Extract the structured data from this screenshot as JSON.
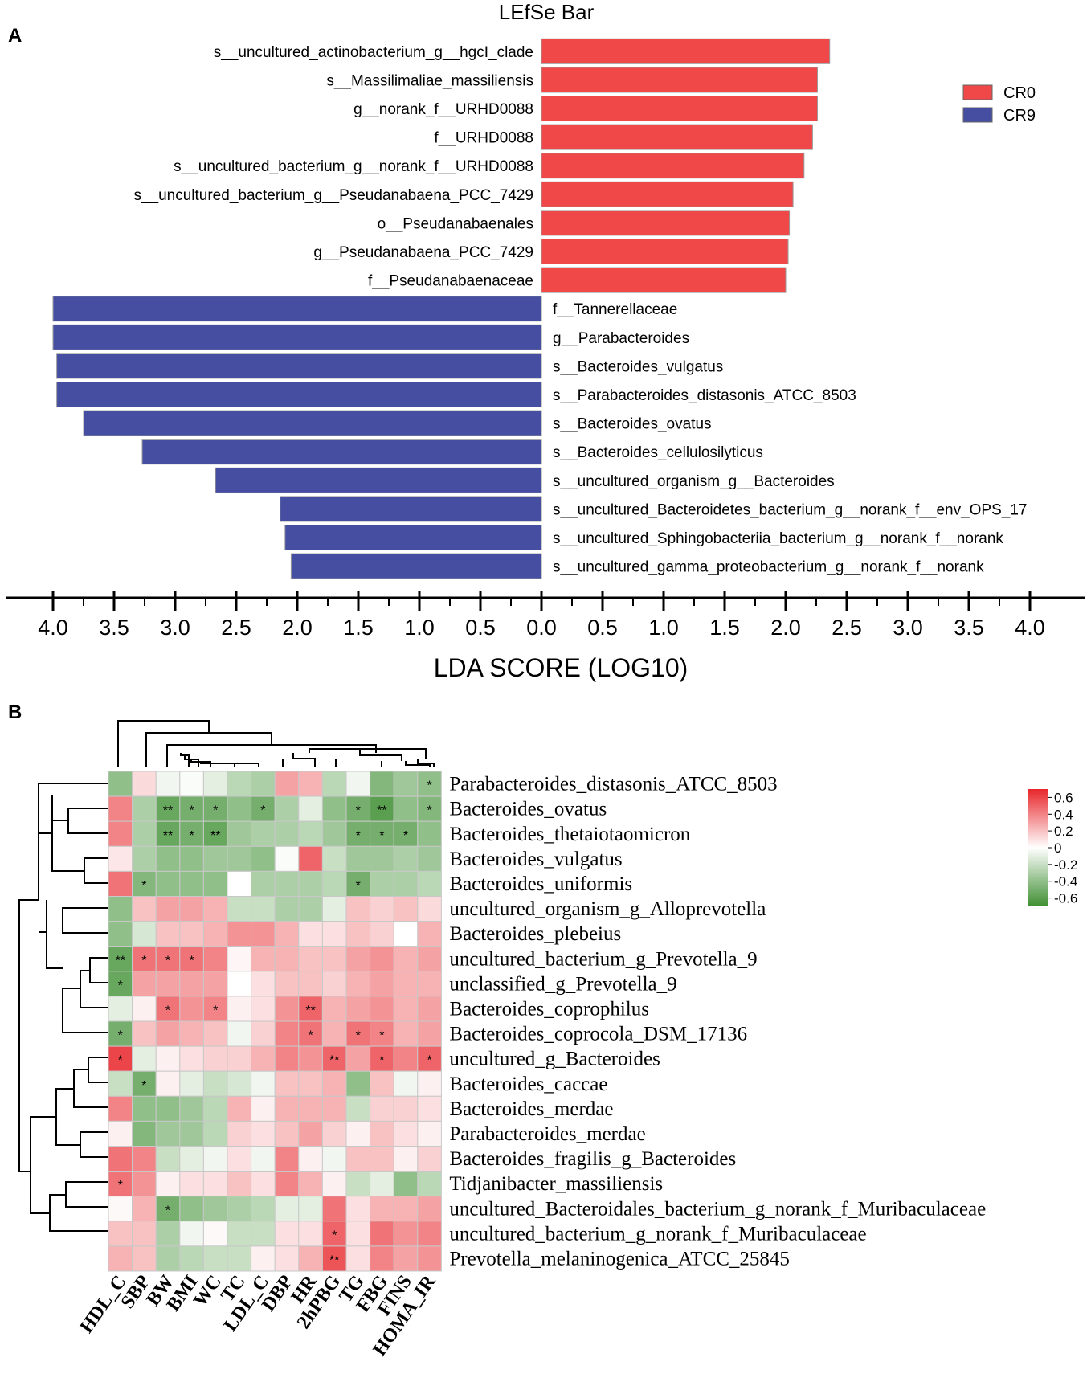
{
  "chart_data": [
    {
      "type": "bar",
      "panel_label": "A",
      "title": "LEfSe Bar",
      "xlabel": "LDA SCORE (LOG10)",
      "xlim": [
        -4.0,
        4.0
      ],
      "xticks": [
        -4.0,
        -3.5,
        -3.0,
        -2.5,
        -2.0,
        -1.5,
        -1.0,
        -0.5,
        0.0,
        0.5,
        1.0,
        1.5,
        2.0,
        2.5,
        3.0,
        3.5,
        4.0
      ],
      "xtick_labels": [
        "4.0",
        "3.5",
        "3.0",
        "2.5",
        "2.0",
        "1.5",
        "1.0",
        "0.5",
        "0.0",
        "0.5",
        "1.0",
        "1.5",
        "2.0",
        "2.5",
        "3.0",
        "3.5",
        "4.0"
      ],
      "legend": [
        {
          "name": "CR0",
          "color": "#f04848"
        },
        {
          "name": "CR9",
          "color": "#464ea2"
        }
      ],
      "legend_position": "top-right",
      "bars": [
        {
          "label": "s__uncultured_actinobacterium_g__hgcI_clade",
          "value": 2.36,
          "group": "CR0"
        },
        {
          "label": "s__Massilimaliae_massiliensis",
          "value": 2.26,
          "group": "CR0"
        },
        {
          "label": "g__norank_f__URHD0088",
          "value": 2.26,
          "group": "CR0"
        },
        {
          "label": "f__URHD0088",
          "value": 2.22,
          "group": "CR0"
        },
        {
          "label": "s__uncultured_bacterium_g__norank_f__URHD0088",
          "value": 2.15,
          "group": "CR0"
        },
        {
          "label": "s__uncultured_bacterium_g__Pseudanabaena_PCC_7429",
          "value": 2.06,
          "group": "CR0"
        },
        {
          "label": "o__Pseudanabaenales",
          "value": 2.03,
          "group": "CR0"
        },
        {
          "label": "g__Pseudanabaena_PCC_7429",
          "value": 2.02,
          "group": "CR0"
        },
        {
          "label": "f__Pseudanabaenaceae",
          "value": 2.0,
          "group": "CR0"
        },
        {
          "label": "f__Tannerellaceae",
          "value": -4.0,
          "group": "CR9"
        },
        {
          "label": "g__Parabacteroides",
          "value": -4.0,
          "group": "CR9"
        },
        {
          "label": "s__Bacteroides_vulgatus",
          "value": -3.97,
          "group": "CR9"
        },
        {
          "label": "s__Parabacteroides_distasonis_ATCC_8503",
          "value": -3.97,
          "group": "CR9"
        },
        {
          "label": "s__Bacteroides_ovatus",
          "value": -3.75,
          "group": "CR9"
        },
        {
          "label": "s__Bacteroides_cellulosilyticus",
          "value": -3.27,
          "group": "CR9"
        },
        {
          "label": "s__uncultured_organism_g__Bacteroides",
          "value": -2.67,
          "group": "CR9"
        },
        {
          "label": "s__uncultured_Bacteroidetes_bacterium_g__norank_f__env_OPS_17",
          "value": -2.14,
          "group": "CR9"
        },
        {
          "label": "s__uncultured_Sphingobacteriia_bacterium_g__norank_f__norank",
          "value": -2.1,
          "group": "CR9"
        },
        {
          "label": "s__uncultured_gamma_proteobacterium_g__norank_f__norank",
          "value": -2.05,
          "group": "CR9"
        }
      ]
    },
    {
      "type": "heatmap",
      "panel_label": "B",
      "columns": [
        "HDL_C",
        "SBP",
        "BW",
        "BMI",
        "WC",
        "TC",
        "LDL_C",
        "DBP",
        "HR",
        "2hPBG",
        "TG",
        "FBG",
        "FINS",
        "HOMA_IR"
      ],
      "rows": [
        "Parabacteroides_distasonis_ATCC_8503",
        "Bacteroides_ovatus",
        "Bacteroides_thetaiotaomicron",
        "Bacteroides_vulgatus",
        "Bacteroides_uniformis",
        "uncultured_organism_g_Alloprevotella",
        "Bacteroides_plebeius",
        "uncultured_bacterium_g_Prevotella_9",
        "unclassified_g_Prevotella_9",
        "Bacteroides_coprophilus",
        "Bacteroides_coprocola_DSM_17136",
        "uncultured_g_Bacteroides",
        "Bacteroides_caccae",
        "Bacteroides_merdae",
        "Parabacteroides_merdae",
        "Bacteroides_fragilis_g_Bacteroides",
        "Tidjanibacter_massiliensis",
        "uncultured_Bacteroidales_bacterium_g_norank_f_Muribaculaceae",
        "uncultured_bacterium_g_norank_f_Muribaculaceae",
        "Prevotella_melaninogenica_ATCC_25845"
      ],
      "values": [
        [
          -0.4,
          0.12,
          -0.05,
          -0.02,
          -0.1,
          -0.25,
          -0.3,
          0.3,
          0.25,
          -0.25,
          -0.05,
          -0.45,
          -0.35,
          -0.4
        ],
        [
          0.4,
          -0.3,
          -0.55,
          -0.5,
          -0.5,
          -0.4,
          -0.5,
          -0.3,
          -0.1,
          -0.4,
          -0.5,
          -0.6,
          -0.4,
          -0.45
        ],
        [
          0.4,
          -0.3,
          -0.55,
          -0.5,
          -0.55,
          -0.35,
          -0.3,
          -0.3,
          -0.25,
          -0.35,
          -0.5,
          -0.5,
          -0.5,
          -0.4
        ],
        [
          0.08,
          -0.3,
          -0.4,
          -0.4,
          -0.35,
          -0.35,
          -0.4,
          -0.02,
          0.5,
          -0.2,
          -0.35,
          -0.35,
          -0.3,
          -0.35
        ],
        [
          0.45,
          -0.45,
          -0.4,
          -0.4,
          -0.4,
          0.0,
          -0.3,
          -0.3,
          -0.3,
          -0.25,
          -0.5,
          -0.3,
          -0.3,
          -0.25
        ],
        [
          -0.4,
          0.2,
          0.3,
          0.3,
          0.25,
          -0.2,
          -0.2,
          -0.3,
          -0.3,
          -0.1,
          0.2,
          0.15,
          0.2,
          0.12
        ],
        [
          -0.4,
          -0.15,
          0.2,
          0.2,
          0.25,
          0.35,
          0.35,
          0.25,
          0.1,
          0.1,
          0.2,
          0.15,
          0.0,
          0.25
        ],
        [
          -0.55,
          0.45,
          0.45,
          0.45,
          0.4,
          0.03,
          0.25,
          0.25,
          0.2,
          0.2,
          0.3,
          0.35,
          0.25,
          0.3
        ],
        [
          -0.55,
          0.3,
          0.3,
          0.3,
          0.3,
          0.0,
          0.1,
          0.2,
          0.2,
          0.15,
          0.25,
          0.3,
          0.25,
          0.25
        ],
        [
          -0.1,
          0.05,
          0.45,
          0.35,
          0.4,
          0.05,
          0.1,
          0.35,
          0.5,
          0.25,
          0.3,
          0.35,
          0.25,
          0.3
        ],
        [
          -0.5,
          0.2,
          0.3,
          0.25,
          0.2,
          -0.05,
          0.15,
          0.4,
          0.45,
          0.25,
          0.45,
          0.4,
          0.25,
          0.3
        ],
        [
          0.6,
          -0.1,
          0.05,
          0.1,
          0.15,
          0.15,
          0.25,
          0.4,
          0.35,
          0.5,
          0.3,
          0.5,
          0.4,
          0.5
        ],
        [
          -0.2,
          -0.5,
          0.05,
          -0.1,
          -0.2,
          -0.15,
          -0.05,
          0.2,
          0.2,
          0.25,
          -0.4,
          0.2,
          -0.05,
          0.05
        ],
        [
          0.4,
          -0.4,
          -0.4,
          -0.35,
          -0.25,
          0.25,
          0.05,
          0.25,
          0.25,
          0.25,
          -0.2,
          0.15,
          0.15,
          0.1
        ],
        [
          0.05,
          -0.45,
          -0.35,
          -0.35,
          -0.25,
          0.15,
          0.1,
          0.2,
          0.3,
          0.15,
          0.05,
          0.2,
          0.1,
          0.05
        ],
        [
          0.45,
          0.4,
          -0.2,
          -0.1,
          -0.05,
          0.1,
          -0.05,
          0.4,
          0.05,
          -0.05,
          0.2,
          0.2,
          0.05,
          0.15
        ],
        [
          0.45,
          0.35,
          0.05,
          0.1,
          0.1,
          0.2,
          0.1,
          0.4,
          0.25,
          0.05,
          -0.2,
          -0.1,
          -0.4,
          -0.25
        ],
        [
          0.02,
          0.25,
          -0.5,
          -0.4,
          -0.35,
          -0.3,
          -0.25,
          -0.1,
          -0.1,
          0.45,
          0.1,
          0.25,
          0.25,
          0.3
        ],
        [
          0.2,
          0.2,
          -0.3,
          -0.05,
          0.02,
          -0.2,
          -0.2,
          0.1,
          0.1,
          0.5,
          0.1,
          0.45,
          0.35,
          0.4
        ],
        [
          0.25,
          0.2,
          -0.3,
          -0.25,
          -0.2,
          -0.2,
          0.05,
          0.1,
          0.25,
          0.55,
          0.1,
          0.4,
          0.3,
          0.35
        ]
      ],
      "significance": [
        [
          "",
          "",
          "",
          "",
          "",
          "",
          "",
          "",
          "",
          "",
          "",
          "",
          "",
          "*"
        ],
        [
          "",
          "",
          "**",
          "*",
          "*",
          "",
          "*",
          "",
          "",
          "",
          "*",
          "**",
          "",
          "*"
        ],
        [
          "",
          "",
          "**",
          "*",
          "**",
          "",
          "",
          "",
          "",
          "",
          "*",
          "*",
          "*",
          ""
        ],
        [
          "",
          "",
          "",
          "",
          "",
          "",
          "",
          "",
          "",
          "",
          "",
          "",
          "",
          ""
        ],
        [
          "",
          "*",
          "",
          "",
          "",
          "",
          "",
          "",
          "",
          "",
          "*",
          "",
          "",
          ""
        ],
        [
          "",
          "",
          "",
          "",
          "",
          "",
          "",
          "",
          "",
          "",
          "",
          "",
          "",
          ""
        ],
        [
          "",
          "",
          "",
          "",
          "",
          "",
          "",
          "",
          "",
          "",
          "",
          "",
          "",
          ""
        ],
        [
          "**",
          "*",
          "*",
          "*",
          "",
          "",
          "",
          "",
          "",
          "",
          "",
          "",
          "",
          ""
        ],
        [
          "*",
          "",
          "",
          "",
          "",
          "",
          "",
          "",
          "",
          "",
          "",
          "",
          "",
          ""
        ],
        [
          "",
          "",
          "*",
          "",
          "*",
          "",
          "",
          "",
          "**",
          "",
          "",
          "",
          "",
          ""
        ],
        [
          "*",
          "",
          "",
          "",
          "",
          "",
          "",
          "",
          "*",
          "",
          "*",
          "*",
          "",
          ""
        ],
        [
          "*",
          "",
          "",
          "",
          "",
          "",
          "",
          "",
          "",
          "**",
          "",
          "*",
          "",
          "*"
        ],
        [
          "",
          "*",
          "",
          "",
          "",
          "",
          "",
          "",
          "",
          "",
          "",
          "",
          "",
          ""
        ],
        [
          "",
          "",
          "",
          "",
          "",
          "",
          "",
          "",
          "",
          "",
          "",
          "",
          "",
          ""
        ],
        [
          "",
          "",
          "",
          "",
          "",
          "",
          "",
          "",
          "",
          "",
          "",
          "",
          "",
          ""
        ],
        [
          "",
          "",
          "",
          "",
          "",
          "",
          "",
          "",
          "",
          "",
          "",
          "",
          "",
          ""
        ],
        [
          "*",
          "",
          "",
          "",
          "",
          "",
          "",
          "",
          "",
          "",
          "",
          "",
          "",
          ""
        ],
        [
          "",
          "",
          "*",
          "",
          "",
          "",
          "",
          "",
          "",
          "",
          "",
          "",
          "",
          ""
        ],
        [
          "",
          "",
          "",
          "",
          "",
          "",
          "",
          "",
          "",
          "*",
          "",
          "",
          "",
          ""
        ],
        [
          "",
          "",
          "",
          "",
          "",
          "",
          "",
          "",
          "",
          "**",
          "",
          "",
          "",
          ""
        ]
      ],
      "colorbar": {
        "range": [
          -0.7,
          0.7
        ],
        "ticks": [
          0.6,
          0.4,
          0.2,
          0,
          -0.2,
          -0.4,
          -0.6
        ],
        "tick_labels": [
          "0.6",
          "0.4",
          "0.2",
          "0",
          "-0.2",
          "-0.4",
          "-0.6"
        ],
        "high_color": "#e8262b",
        "mid_color": "#ffffff",
        "low_color": "#3f8f32"
      }
    }
  ]
}
